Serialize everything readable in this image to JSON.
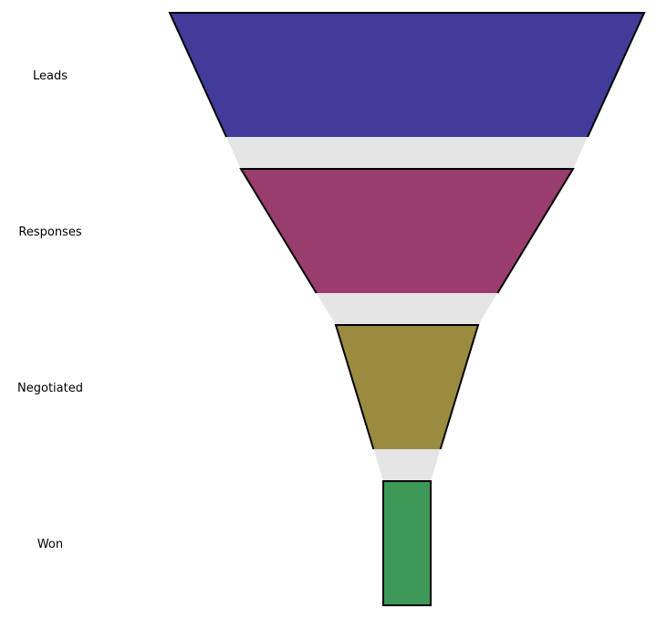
{
  "chart_data": {
    "type": "funnel",
    "categories": [
      "Leads",
      "Responses",
      "Negotiated",
      "Won"
    ],
    "values": [
      100,
      70,
      30,
      10
    ],
    "colors": [
      "#413c99",
      "#993c6e",
      "#9a8b3e",
      "#3e9958"
    ],
    "connector_color": "#e5e5e5",
    "title": "",
    "xlabel": "",
    "ylabel": ""
  }
}
